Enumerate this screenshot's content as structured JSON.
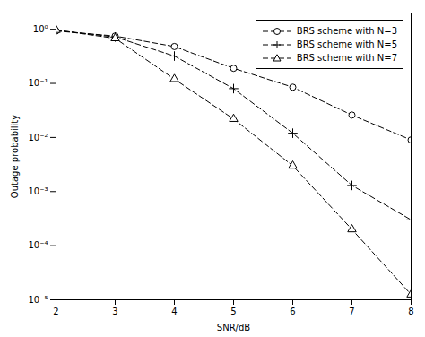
{
  "chart_data": {
    "type": "line",
    "xlabel": "SNR/dB",
    "ylabel": "Outage probability",
    "x": [
      2,
      3,
      4,
      5,
      6,
      7,
      8
    ],
    "series": [
      {
        "name": "BRS scheme with N=3",
        "color": "#000000",
        "marker": "circle",
        "line_style": "dashed",
        "values": [
          0.93,
          0.75,
          0.48,
          0.19,
          0.085,
          0.026,
          0.009
        ]
      },
      {
        "name": "BRS scheme with N=5",
        "color": "#000000",
        "marker": "plus",
        "line_style": "dashed",
        "values": [
          0.96,
          0.72,
          0.32,
          0.08,
          0.012,
          0.0013,
          0.0003
        ]
      },
      {
        "name": "BRS scheme with N=7",
        "color": "#000000",
        "marker": "triangle",
        "line_style": "dashed",
        "values": [
          0.97,
          0.68,
          0.12,
          0.022,
          0.003,
          0.0002,
          1.25e-05
        ]
      }
    ],
    "xlim": [
      2,
      8
    ],
    "xticks": [
      2,
      3,
      4,
      5,
      6,
      7,
      8
    ],
    "ylim": [
      1e-05,
      2.0
    ],
    "yticks": [
      {
        "value": 1e-05,
        "label": "10⁻⁵"
      },
      {
        "value": 0.0001,
        "label": "10⁻⁴"
      },
      {
        "value": 0.001,
        "label": "10⁻³"
      },
      {
        "value": 0.01,
        "label": "10⁻²"
      },
      {
        "value": 0.1,
        "label": "10⁻¹"
      },
      {
        "value": 1,
        "label": "10⁰"
      }
    ],
    "log": "y",
    "grid": false,
    "legend": "upper right"
  }
}
